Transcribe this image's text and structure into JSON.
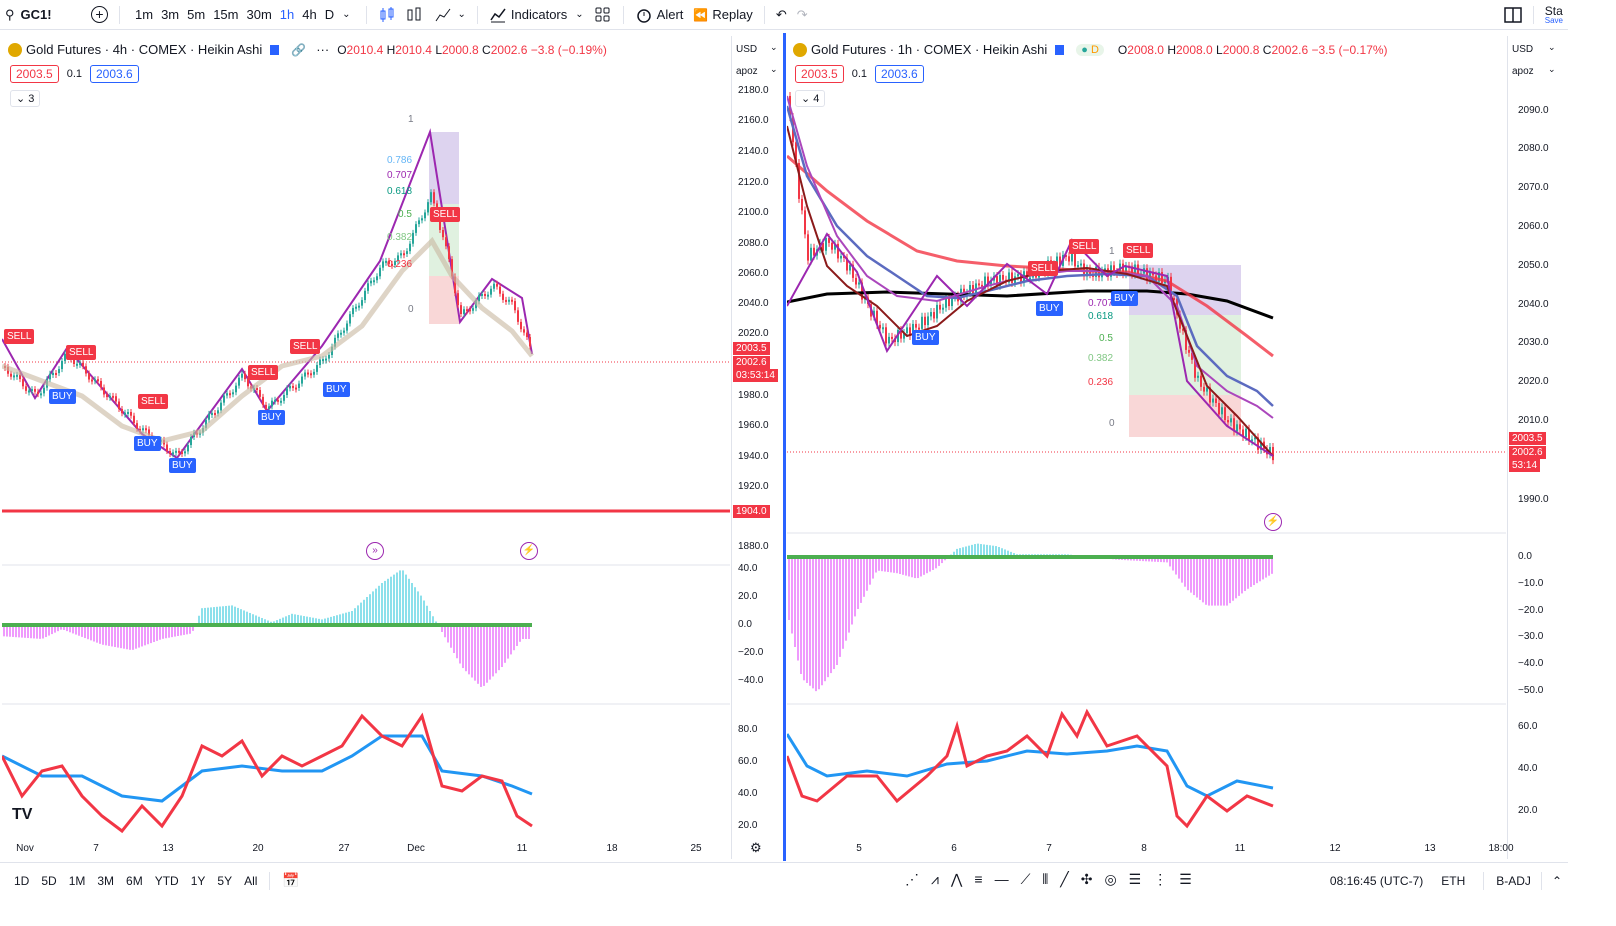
{
  "topbar": {
    "symbol": "GC1!",
    "timeframes": [
      "1m",
      "3m",
      "5m",
      "15m",
      "30m",
      "1h",
      "4h",
      "D"
    ],
    "active_timeframe": "1h",
    "indicators_label": "Indicators",
    "alert_label": "Alert",
    "replay_label": "Replay",
    "right_label": "Sta",
    "right_sub": "Save"
  },
  "left_chart": {
    "title": "Gold Futures · 4h · COMEX · Heikin Ashi",
    "ohlc": {
      "o": "2010.4",
      "h": "2010.4",
      "l": "2000.8",
      "c": "2002.6",
      "chg": "−3.8 (−0.19%)"
    },
    "bid": "2003.5",
    "spread": "0.1",
    "ask": "2003.6",
    "indicator_count": "3",
    "currency": "USD",
    "scale_mode": "apoz",
    "price_ticks": [
      "2180.0",
      "2160.0",
      "2140.0",
      "2120.0",
      "2100.0",
      "2080.0",
      "2060.0",
      "2040.0",
      "2020.0",
      "1980.0",
      "1960.0",
      "1940.0",
      "1920.0",
      "1880.0"
    ],
    "price_current": "2003.5",
    "price_close": "2002.6",
    "countdown": "03:53:14",
    "level_line": "1904.0",
    "macd_ticks": [
      "40.0",
      "20.0",
      "0.0",
      "−20.0",
      "−40.0"
    ],
    "rsi_ticks": [
      "80.0",
      "60.0",
      "40.0",
      "20.0"
    ],
    "x_ticks": [
      "Nov",
      "7",
      "13",
      "20",
      "27",
      "Dec",
      "11",
      "18",
      "25"
    ],
    "fib_levels": [
      "1",
      "0.786",
      "0.707",
      "0.618",
      "0.5",
      "0.382",
      "0.236",
      "0"
    ],
    "signals": [
      "SELL",
      "SELL",
      "BUY",
      "SELL",
      "BUY",
      "BUY",
      "SELL",
      "BUY",
      "SELL",
      "BUY",
      "SELL"
    ]
  },
  "right_chart": {
    "title": "Gold Futures · 1h · COMEX · Heikin Ashi",
    "badge": "D",
    "ohlc": {
      "o": "2008.0",
      "h": "2008.0",
      "l": "2000.8",
      "c": "2002.6",
      "chg": "−3.5 (−0.17%)"
    },
    "bid": "2003.5",
    "spread": "0.1",
    "ask": "2003.6",
    "indicator_count": "4",
    "currency": "USD",
    "scale_mode": "apoz",
    "price_ticks": [
      "2090.0",
      "2080.0",
      "2070.0",
      "2060.0",
      "2050.0",
      "2040.0",
      "2030.0",
      "2020.0",
      "2010.0",
      "1990.0"
    ],
    "price_current": "2003.5",
    "price_close": "2002.6",
    "countdown": "53:14",
    "macd_ticks": [
      "0.0",
      "−10.0",
      "−20.0",
      "−30.0",
      "−40.0",
      "−50.0"
    ],
    "rsi_ticks": [
      "60.0",
      "40.0",
      "20.0"
    ],
    "x_ticks": [
      "5",
      "6",
      "7",
      "8",
      "11",
      "12",
      "13",
      "18:00"
    ],
    "fib_levels": [
      "1",
      "0.707",
      "0.618",
      "0.5",
      "0.382",
      "0.236",
      "0"
    ],
    "signals": [
      "SELL",
      "SELL",
      "BUY",
      "BUY",
      "SELL"
    ]
  },
  "bottombar": {
    "ranges": [
      "1D",
      "5D",
      "1M",
      "3M",
      "6M",
      "YTD",
      "1Y",
      "5Y",
      "All"
    ],
    "time": "08:16:45 (UTC-7)",
    "session": "ETH",
    "adjust": "B-ADJ"
  },
  "colors": {
    "up": "#26a69a",
    "down": "#f23645",
    "accent": "#2962ff",
    "zigzag": "#9c27b0",
    "ema_red": "#f23645",
    "rsi_blue": "#2196f3"
  }
}
